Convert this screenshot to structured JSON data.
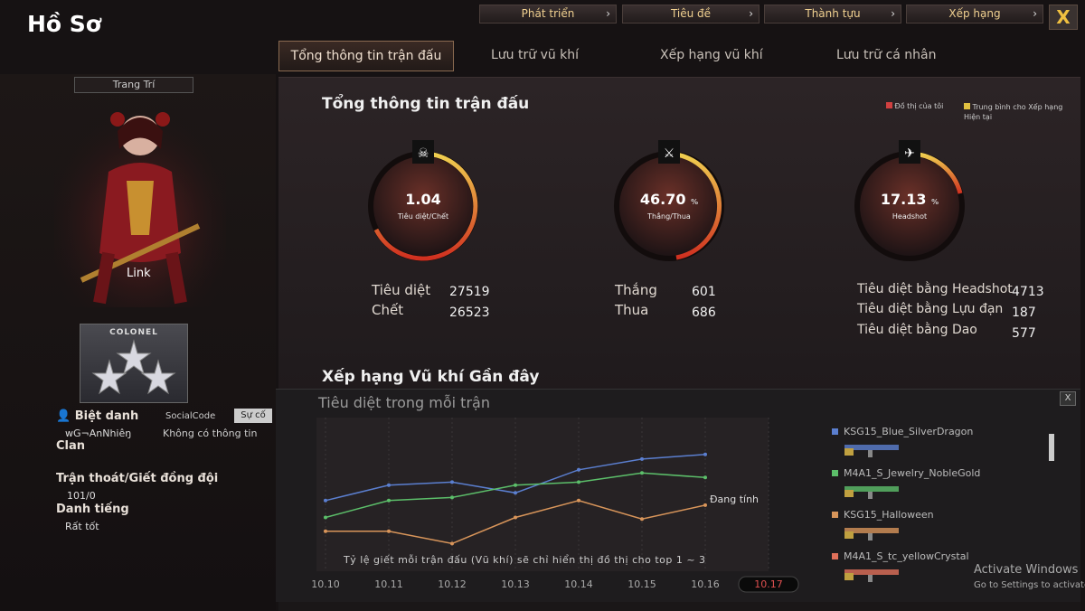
{
  "header": {
    "title": "Hồ Sơ",
    "buttons": [
      "Phát triển",
      "Tiêu đề",
      "Thành tựu",
      "Xếp hạng"
    ],
    "close": "X"
  },
  "tabs": [
    "Tổng thông tin trận đấu",
    "Lưu trữ vũ khí",
    "Xếp hạng vũ khí",
    "Lưu trữ cá nhân"
  ],
  "left": {
    "decor_button": "Trang Trí",
    "character": "Link",
    "rank": "COLONEL",
    "nickname_label": "Biệt danh",
    "nickname": "wG¬AnNhiêŋ",
    "social_label": "SocialCode",
    "social_button": "Sự cố",
    "social_value": "Không có thông tin",
    "clan_label": "Clan",
    "desert_label": "Trận thoát/Giết đồng đội",
    "desert_value": "101/0",
    "fame_label": "Danh tiếng",
    "fame_value": "Rất tốt"
  },
  "summary": {
    "title": "Tổng thông tin trận đấu",
    "legend": [
      "Đồ thị của tôi",
      "Trung bình cho Xếp hạng Hiện tại"
    ],
    "gauges": [
      {
        "value": "1.04",
        "label": "Tiêu diệt/Chết"
      },
      {
        "value": "46.70",
        "unit": "%",
        "label": "Thắng/Thua"
      },
      {
        "value": "17.13",
        "unit": "%",
        "label": "Headshot"
      }
    ],
    "stats": [
      [
        [
          "Tiêu diệt",
          27519
        ],
        [
          "Chết",
          26523
        ]
      ],
      [
        [
          "Thắng",
          601
        ],
        [
          "Thua",
          686
        ]
      ],
      [
        [
          "Tiêu diệt bằng Headshot",
          4713
        ],
        [
          "Tiêu diệt bằng Lựu đạn",
          187
        ],
        [
          "Tiêu diệt bằng Dao",
          577
        ]
      ]
    ]
  },
  "recent": {
    "title": "Xếp hạng Vũ khí Gần đây",
    "status": "Đang tính",
    "note": "Tỷ lệ giết mỗi trận đấu (Vũ khí) sẽ chỉ hiển thị đồ thị cho top 1 ~ 3",
    "close": "X"
  },
  "chart_data": {
    "type": "line",
    "title": "Tiêu diệt trong mỗi trận",
    "categories": [
      "10.10",
      "10.11",
      "10.12",
      "10.13",
      "10.14",
      "10.15",
      "10.16",
      "10.17"
    ],
    "ylim": [
      0,
      10
    ],
    "series": [
      {
        "name": "KSG15_Blue_SilverDragon",
        "color": "#5b7fd0",
        "values": [
          4.6,
          5.6,
          5.8,
          5.1,
          6.6,
          7.3,
          7.6,
          null
        ]
      },
      {
        "name": "M4A1_S_Jewelry_NobleGold",
        "color": "#5cbf6a",
        "values": [
          3.5,
          4.6,
          4.8,
          5.6,
          5.8,
          6.4,
          6.1,
          null
        ]
      },
      {
        "name": "KSG15_Halloween",
        "color": "#d8955a",
        "values": [
          2.6,
          2.6,
          1.8,
          3.5,
          4.6,
          3.4,
          4.3,
          null
        ]
      },
      {
        "name": "M4A1_S_tc_yellowCrystal",
        "color": "#e0705a",
        "values": [
          null,
          null,
          null,
          null,
          null,
          null,
          null,
          null
        ]
      }
    ]
  },
  "watermark": {
    "title": "Activate Windows",
    "text": "Go to Settings to activate Windows."
  }
}
